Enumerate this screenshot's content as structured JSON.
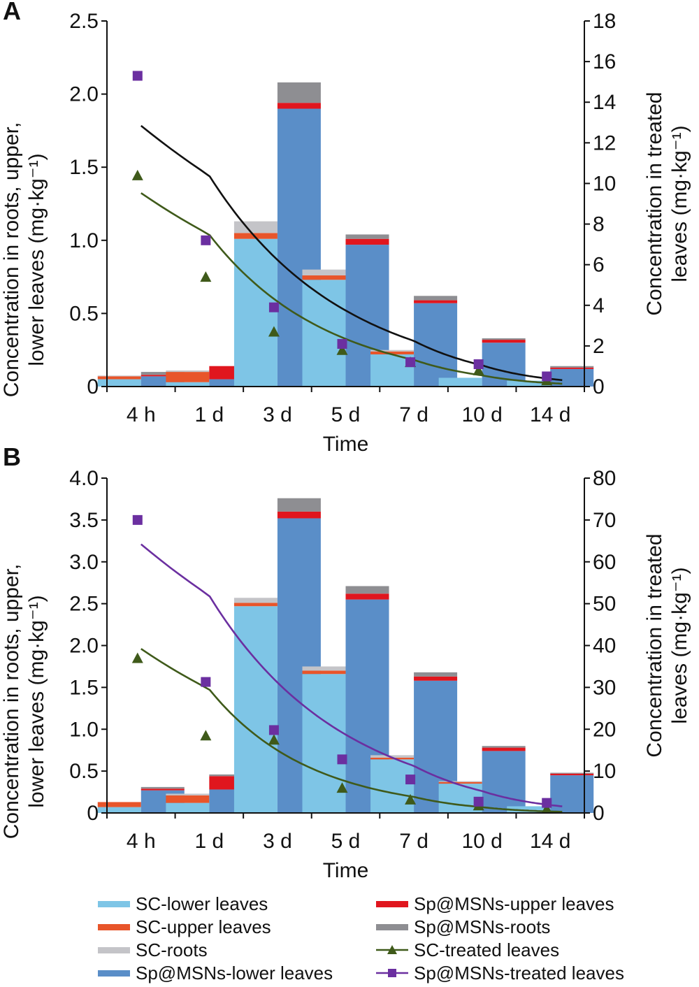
{
  "chart_data": [
    {
      "panel": "A",
      "type": "bar",
      "stacked": true,
      "xlabel": "Time",
      "ylabel_left_line1": "Concentration in roots, upper,",
      "ylabel_left_line2": "lower leaves (mg·kg⁻¹)",
      "ylabel_right_line1": "Concentration in treated",
      "ylabel_right_line2": "leaves (mg·kg⁻¹)",
      "categories": [
        "4 h",
        "1 d",
        "3 d",
        "5 d",
        "7 d",
        "10 d",
        "14 d"
      ],
      "x_days": [
        0.167,
        1,
        3,
        5,
        7,
        10,
        14
      ],
      "ylim_left": [
        0,
        2.5
      ],
      "yticks_left": [
        "0",
        "0.5",
        "1.0",
        "1.5",
        "2.0",
        "2.5"
      ],
      "ylim_right": [
        0,
        18
      ],
      "yticks_right": [
        "0",
        "2",
        "4",
        "6",
        "8",
        "10",
        "12",
        "14",
        "16",
        "18"
      ],
      "bar_series": [
        {
          "name": "SC-lower leaves",
          "group": "SC",
          "color": "#7ec5e6",
          "values": [
            0.05,
            0.03,
            1.01,
            0.73,
            0.22,
            0.06,
            0.04
          ]
        },
        {
          "name": "SC-upper leaves",
          "group": "SC",
          "color": "#e8552a",
          "values": [
            0.02,
            0.07,
            0.04,
            0.03,
            0.02,
            0.0,
            0.0
          ]
        },
        {
          "name": "SC-roots",
          "group": "SC",
          "color": "#c4c4c8",
          "values": [
            0.005,
            0.01,
            0.08,
            0.04,
            0.01,
            0.0,
            0.0
          ]
        },
        {
          "name": "Sp@MSNs-lower leaves",
          "group": "Sp",
          "color": "#5a8ec8",
          "values": [
            0.07,
            0.05,
            1.9,
            0.97,
            0.57,
            0.3,
            0.12
          ]
        },
        {
          "name": "Sp@MSNs-upper leaves",
          "group": "Sp",
          "color": "#e0161e",
          "values": [
            0.01,
            0.09,
            0.04,
            0.04,
            0.02,
            0.02,
            0.01
          ]
        },
        {
          "name": "Sp@MSNs-roots",
          "group": "Sp",
          "color": "#8e8e92",
          "values": [
            0.02,
            0.0,
            0.14,
            0.03,
            0.03,
            0.01,
            0.01
          ]
        }
      ],
      "line_series": [
        {
          "name": "SC-treated leaves",
          "color": "#3f5a1a",
          "marker": "triangle",
          "points": [
            10.4,
            5.4,
            2.7,
            1.8,
            1.2,
            0.8,
            0.3
          ]
        },
        {
          "name": "Sp@MSNs-treated leaves",
          "color": "#6b2fa0",
          "marker": "square",
          "points": [
            15.3,
            7.2,
            3.9,
            2.1,
            1.2,
            1.1,
            0.5
          ]
        }
      ],
      "fits": [
        {
          "color": "#3f5a1a",
          "a": 10.0,
          "k": 0.29
        },
        {
          "color": "#111111",
          "a": 13.4,
          "k": 0.255
        }
      ]
    },
    {
      "panel": "B",
      "type": "bar",
      "stacked": true,
      "xlabel": "Time",
      "ylabel_left_line1": "Concentration in roots, upper,",
      "ylabel_left_line2": "lower leaves (mg·kg⁻¹)",
      "ylabel_right_line1": "Concentration in treated",
      "ylabel_right_line2": "leaves (mg·kg⁻¹)",
      "categories": [
        "4 h",
        "1 d",
        "3 d",
        "5 d",
        "7 d",
        "10 d",
        "14 d"
      ],
      "x_days": [
        0.167,
        1,
        3,
        5,
        7,
        10,
        14
      ],
      "ylim_left": [
        0,
        4.0
      ],
      "yticks_left": [
        "0",
        "0.5",
        "1.0",
        "1.5",
        "2.0",
        "2.5",
        "3.0",
        "3.5",
        "4.0"
      ],
      "ylim_right": [
        0,
        80
      ],
      "yticks_right": [
        "0",
        "10",
        "20",
        "30",
        "40",
        "50",
        "60",
        "70",
        "80"
      ],
      "bar_series": [
        {
          "name": "SC-lower leaves",
          "group": "SC",
          "color": "#7ec5e6",
          "values": [
            0.07,
            0.12,
            2.47,
            1.66,
            0.64,
            0.35,
            0.08
          ]
        },
        {
          "name": "SC-upper leaves",
          "group": "SC",
          "color": "#e8552a",
          "values": [
            0.06,
            0.09,
            0.04,
            0.04,
            0.02,
            0.02,
            0.0
          ]
        },
        {
          "name": "SC-roots",
          "group": "SC",
          "color": "#c4c4c8",
          "values": [
            0.0,
            0.02,
            0.06,
            0.05,
            0.03,
            0.01,
            0.0
          ]
        },
        {
          "name": "Sp@MSNs-lower leaves",
          "group": "Sp",
          "color": "#5a8ec8",
          "values": [
            0.27,
            0.28,
            3.52,
            2.55,
            1.58,
            0.74,
            0.45
          ]
        },
        {
          "name": "Sp@MSNs-upper leaves",
          "group": "Sp",
          "color": "#e0161e",
          "values": [
            0.02,
            0.16,
            0.08,
            0.07,
            0.05,
            0.04,
            0.02
          ]
        },
        {
          "name": "Sp@MSNs-roots",
          "group": "Sp",
          "color": "#8e8e92",
          "values": [
            0.02,
            0.02,
            0.16,
            0.09,
            0.05,
            0.02,
            0.01
          ]
        }
      ],
      "line_series": [
        {
          "name": "SC-treated leaves",
          "color": "#3f5a1a",
          "marker": "triangle",
          "points": [
            37.0,
            18.5,
            17.5,
            6.0,
            3.2,
            1.8,
            1.0
          ]
        },
        {
          "name": "Sp@MSNs-treated leaves",
          "color": "#6b2fa0",
          "marker": "square",
          "points": [
            70.0,
            31.3,
            19.8,
            12.8,
            8.0,
            2.7,
            2.4
          ]
        }
      ],
      "fits": [
        {
          "color": "#3f5a1a",
          "a": 41.5,
          "k": 0.34
        },
        {
          "color": "#6b2fa0",
          "a": 67.0,
          "k": 0.255
        }
      ]
    }
  ],
  "legend": {
    "items": [
      {
        "label": "SC-lower leaves",
        "kind": "bar",
        "color": "#7ec5e6"
      },
      {
        "label": "Sp@MSNs-upper leaves",
        "kind": "bar",
        "color": "#e0161e"
      },
      {
        "label": "SC-upper leaves",
        "kind": "bar",
        "color": "#e8552a"
      },
      {
        "label": "Sp@MSNs-roots",
        "kind": "bar",
        "color": "#8e8e92"
      },
      {
        "label": "SC-roots",
        "kind": "bar",
        "color": "#c4c4c8"
      },
      {
        "label": "SC-treated leaves",
        "kind": "line-triangle",
        "color": "#3f5a1a"
      },
      {
        "label": "Sp@MSNs-lower leaves",
        "kind": "bar",
        "color": "#5a8ec8"
      },
      {
        "label": "Sp@MSNs-treated leaves",
        "kind": "line-square",
        "color": "#6b2fa0"
      }
    ]
  }
}
